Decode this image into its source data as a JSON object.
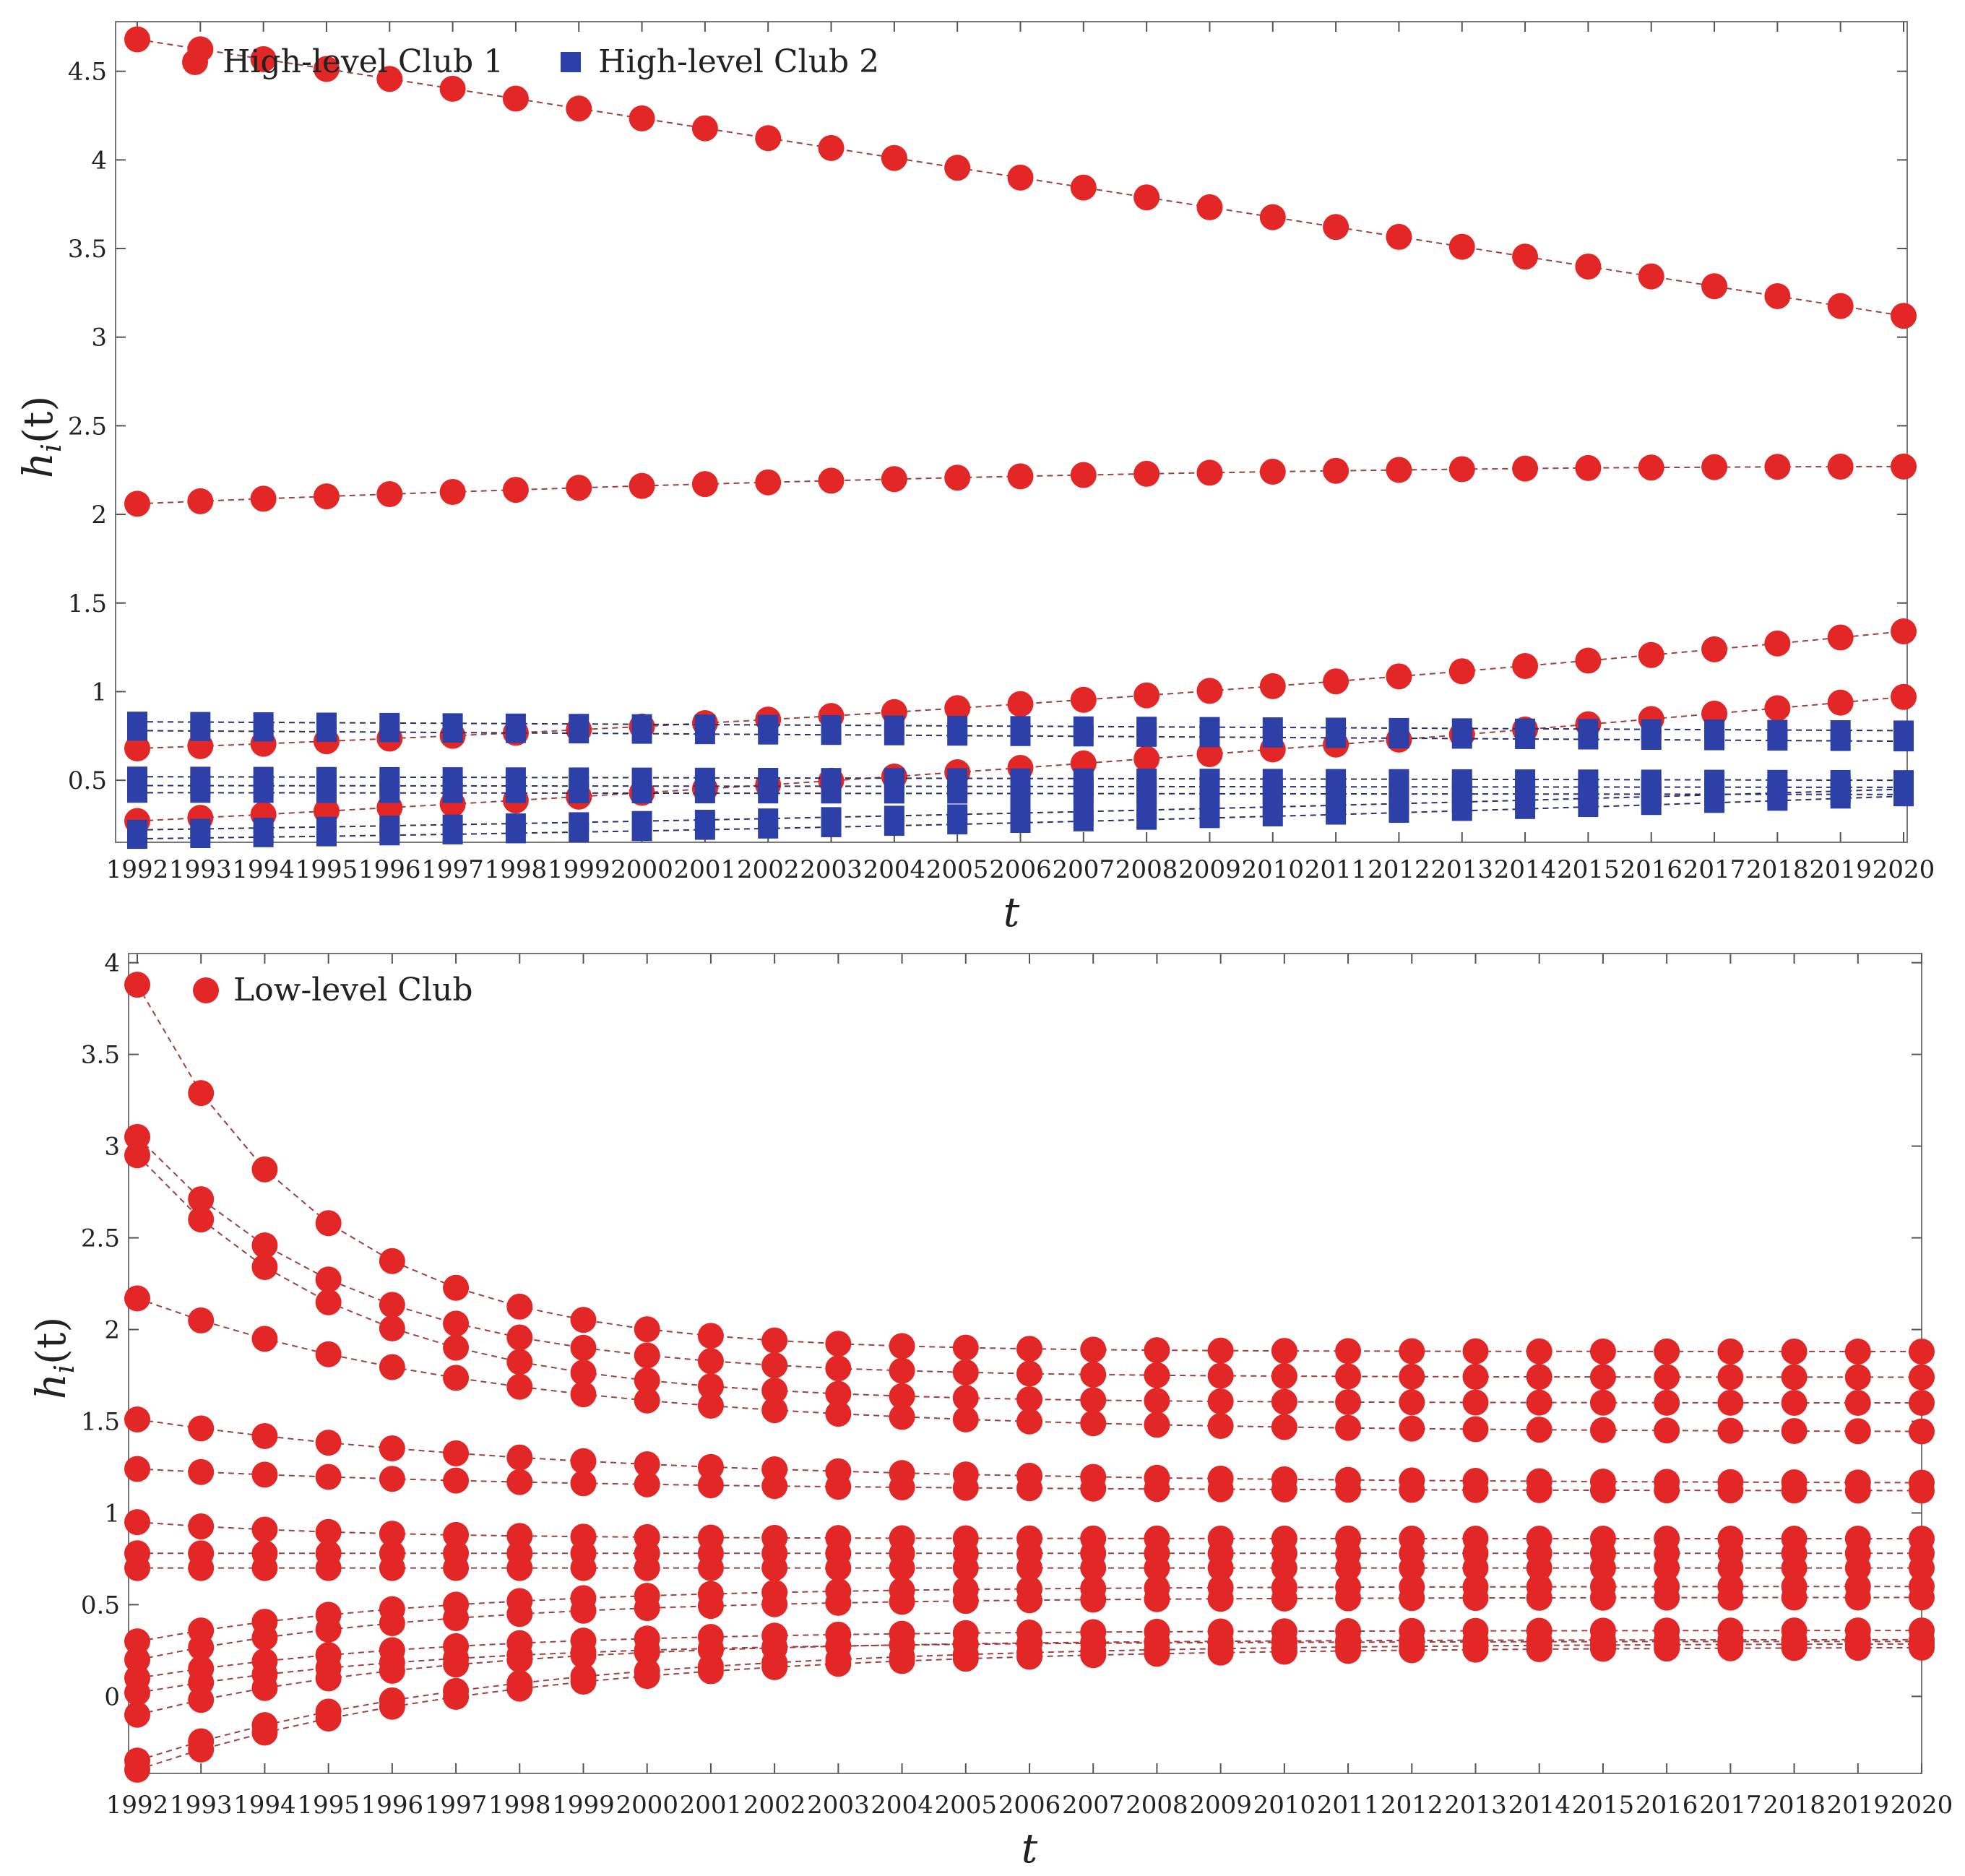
{
  "chart_data": [
    {
      "type": "line",
      "panel": "top",
      "title": "",
      "xlabel": "t",
      "ylabel": "h_i(t)",
      "ylabel_parts": {
        "h": "h",
        "sub": "i",
        "paren": "(t)"
      },
      "x": [
        "1992",
        "1993",
        "1994",
        "1995",
        "1996",
        "1997",
        "1998",
        "1999",
        "2000",
        "2001",
        "2002",
        "2003",
        "2004",
        "2005",
        "2006",
        "2007",
        "2008",
        "2009",
        "2010",
        "2011",
        "2012",
        "2013",
        "2014",
        "2015",
        "2016",
        "2017",
        "2018",
        "2019",
        "2020"
      ],
      "ylim": [
        0.15,
        4.78
      ],
      "yticks": [
        0.5,
        1,
        1.5,
        2,
        2.5,
        3,
        3.5,
        4,
        4.5
      ],
      "ytick_labels": [
        "0.5",
        "1",
        "1.5",
        "2",
        "2.5",
        "3",
        "3.5",
        "4",
        "4.5"
      ],
      "legend": [
        {
          "label": "High-level Club 1",
          "marker": "circle",
          "color": "#e32727"
        },
        {
          "label": "High-level Club 2",
          "marker": "square",
          "color": "#2d40a8"
        }
      ],
      "legend_position": "top-left",
      "series": [
        {
          "group": "High-level Club 1",
          "start": 4.68,
          "end": 3.12,
          "curve": 0.0
        },
        {
          "group": "High-level Club 1",
          "start": 2.06,
          "end": 2.27,
          "curve": -0.05
        },
        {
          "group": "High-level Club 1",
          "start": 0.68,
          "end": 1.34,
          "curve": 0.08
        },
        {
          "group": "High-level Club 1",
          "start": 0.27,
          "end": 0.97,
          "curve": 0.05
        },
        {
          "group": "High-level Club 2",
          "start": 0.83,
          "end": 0.78,
          "curve": 0.0
        },
        {
          "group": "High-level Club 2",
          "start": 0.78,
          "end": 0.72,
          "curve": 0.0
        },
        {
          "group": "High-level Club 2",
          "start": 0.52,
          "end": 0.5,
          "curve": 0.0
        },
        {
          "group": "High-level Club 2",
          "start": 0.47,
          "end": 0.46,
          "curve": 0.0
        },
        {
          "group": "High-level Club 2",
          "start": 0.43,
          "end": 0.42,
          "curve": 0.0
        },
        {
          "group": "High-level Club 2",
          "start": 0.22,
          "end": 0.45,
          "curve": 0.02
        },
        {
          "group": "High-level Club 2",
          "start": 0.17,
          "end": 0.41,
          "curve": 0.03
        }
      ]
    },
    {
      "type": "line",
      "panel": "bottom",
      "title": "",
      "xlabel": "t",
      "ylabel": "h_i(t)",
      "ylabel_parts": {
        "h": "h",
        "sub": "i",
        "paren": "(t)"
      },
      "x": [
        "1992",
        "1993",
        "1994",
        "1995",
        "1996",
        "1997",
        "1998",
        "1999",
        "2000",
        "2001",
        "2002",
        "2003",
        "2004",
        "2005",
        "2006",
        "2007",
        "2008",
        "2009",
        "2010",
        "2011",
        "2012",
        "2013",
        "2014",
        "2015",
        "2016",
        "2017",
        "2018",
        "2019",
        "2020"
      ],
      "ylim": [
        -0.42,
        4.05
      ],
      "yticks": [
        0,
        0.5,
        1,
        1.5,
        2,
        2.5,
        3,
        3.5,
        4
      ],
      "ytick_labels": [
        "0",
        "0.5",
        "1",
        "1.5",
        "2",
        "2.5",
        "3",
        "3.5",
        "4"
      ],
      "legend": [
        {
          "label": "Low-level Club",
          "marker": "circle",
          "color": "#e32727"
        }
      ],
      "legend_position": "top-left",
      "series": [
        {
          "start": 3.88,
          "end": 1.88,
          "rate": 0.35
        },
        {
          "start": 3.05,
          "end": 1.74,
          "rate": 0.3
        },
        {
          "start": 2.95,
          "end": 1.6,
          "rate": 0.3
        },
        {
          "start": 2.17,
          "end": 1.44,
          "rate": 0.18
        },
        {
          "start": 1.51,
          "end": 1.16,
          "rate": 0.15
        },
        {
          "start": 1.24,
          "end": 1.12,
          "rate": 0.15
        },
        {
          "start": 0.95,
          "end": 0.86,
          "rate": 0.3
        },
        {
          "start": 0.78,
          "end": 0.78,
          "rate": 0.3
        },
        {
          "start": 0.7,
          "end": 0.7,
          "rate": 0.3
        },
        {
          "start": 0.3,
          "end": 0.6,
          "rate": 0.22
        },
        {
          "start": 0.2,
          "end": 0.54,
          "rate": 0.22
        },
        {
          "start": 0.1,
          "end": 0.36,
          "rate": 0.22
        },
        {
          "start": 0.02,
          "end": 0.3,
          "rate": 0.22
        },
        {
          "start": -0.1,
          "end": 0.31,
          "rate": 0.22
        },
        {
          "start": -0.35,
          "end": 0.29,
          "rate": 0.18
        },
        {
          "start": -0.4,
          "end": 0.27,
          "rate": 0.18
        }
      ]
    }
  ],
  "colors": {
    "red": "#e32727",
    "blue": "#2d40a8"
  }
}
